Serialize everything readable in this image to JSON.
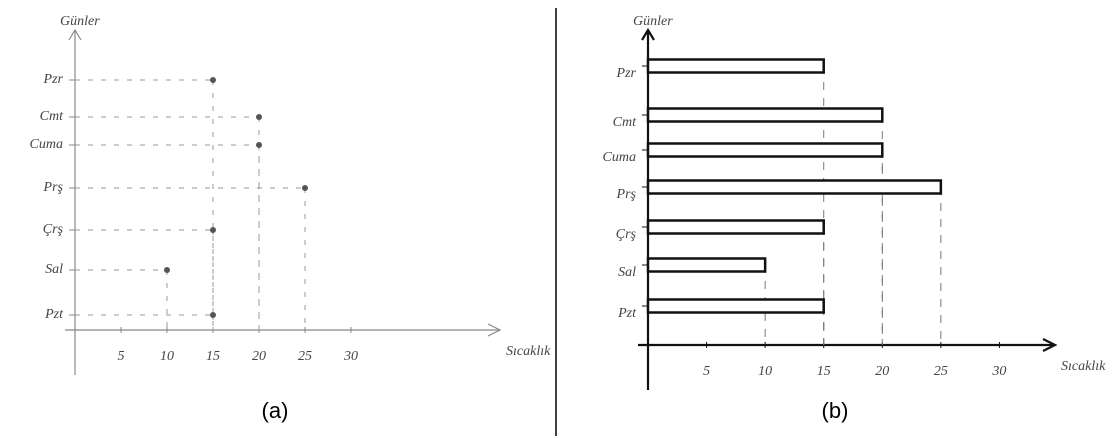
{
  "chart_data": [
    {
      "type": "dot",
      "caption": "(a)",
      "y_label": "Günler",
      "x_label": "Sıcaklık",
      "categories": [
        "Pzr",
        "Cmt",
        "Cuma",
        "Prş",
        "Çrş",
        "Sal",
        "Pzt"
      ],
      "values": [
        15,
        20,
        20,
        25,
        15,
        10,
        15
      ],
      "xlim": [
        0,
        45
      ],
      "xticks": [
        5,
        10,
        15,
        20,
        25,
        30
      ],
      "color": "#555555"
    },
    {
      "type": "bar",
      "caption": "(b)",
      "y_label": "Günler",
      "x_label": "Sıcaklık",
      "categories": [
        "Pzr",
        "Cmt",
        "Cuma",
        "Prş",
        "Çrş",
        "Sal",
        "Pzt"
      ],
      "values": [
        15,
        20,
        20,
        25,
        15,
        10,
        15
      ],
      "xlim": [
        0,
        35
      ],
      "xticks": [
        5,
        10,
        15,
        20,
        25,
        30
      ],
      "color": "#111111"
    }
  ]
}
